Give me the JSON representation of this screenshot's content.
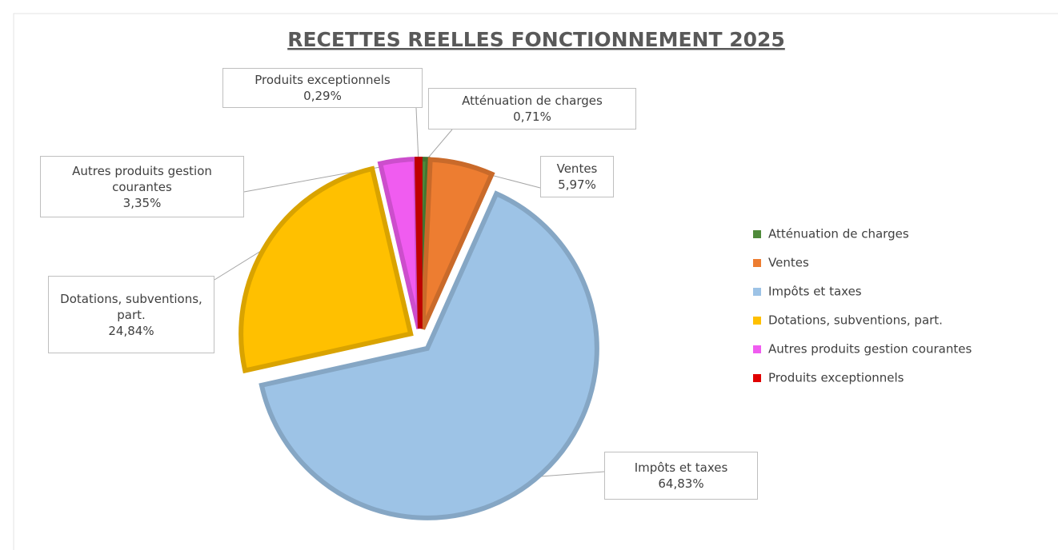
{
  "chart_data": {
    "type": "pie",
    "title": "RECETTES REELLES FONCTIONNEMENT 2025",
    "categories": [
      "Atténuation de charges",
      "Ventes",
      "Impôts et taxes",
      "Dotations, subventions, part.",
      "Autres produits gestion courantes",
      "Produits exceptionnels"
    ],
    "values": [
      0.71,
      5.97,
      64.83,
      24.84,
      3.35,
      0.29
    ],
    "value_labels": [
      "0,71%",
      "5,97%",
      "64,83%",
      "24,84%",
      "3,35%",
      "0,29%"
    ],
    "colors": [
      "#4f8a3a",
      "#ed7d31",
      "#9dc3e6",
      "#ffc000",
      "#f05cf0",
      "#e00000"
    ],
    "legend": "right"
  }
}
